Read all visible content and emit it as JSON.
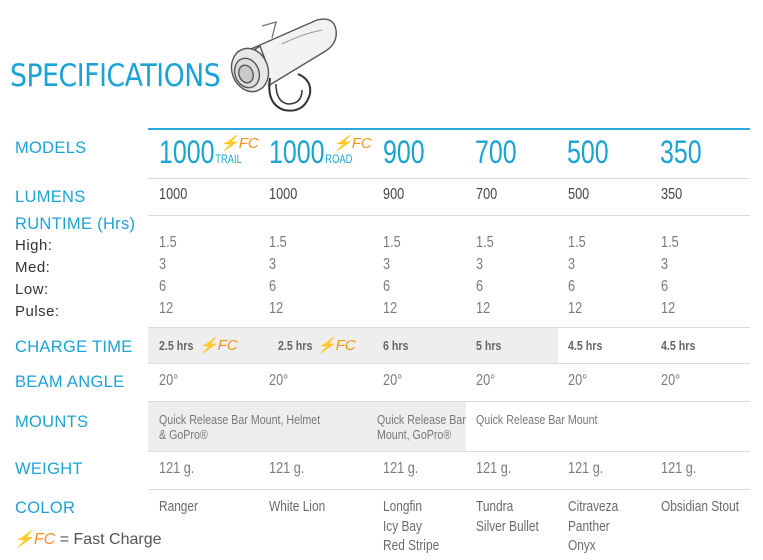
{
  "title": "SPECIFICATIONS",
  "labels": {
    "models": "MODELS",
    "lumens": "LUMENS",
    "runtime": "RUNTIME (Hrs)",
    "high": "High:",
    "med": "Med:",
    "low": "Low:",
    "pulse": "Pulse:",
    "charge_time": "CHARGE TIME",
    "beam_angle": "BEAM ANGLE",
    "mounts": "MOUNTS",
    "weight": "WEIGHT",
    "color": "COLOR"
  },
  "fc_mark": "FC",
  "legend": {
    "mark": "FC",
    "text": "= Fast Charge"
  },
  "models": [
    {
      "name": "1000",
      "sub": "TRAIL",
      "fc": true
    },
    {
      "name": "1000",
      "sub": "ROAD",
      "fc": true
    },
    {
      "name": "900",
      "sub": "",
      "fc": false
    },
    {
      "name": "700",
      "sub": "",
      "fc": false
    },
    {
      "name": "500",
      "sub": "",
      "fc": false
    },
    {
      "name": "350",
      "sub": "",
      "fc": false
    }
  ],
  "lumens": [
    "1000",
    "1000",
    "900",
    "700",
    "500",
    "350"
  ],
  "runtime": {
    "high": [
      "1.5",
      "1.5",
      "1.5",
      "1.5",
      "1.5",
      "1.5"
    ],
    "med": [
      "3",
      "3",
      "3",
      "3",
      "3",
      "3"
    ],
    "low": [
      "6",
      "6",
      "6",
      "6",
      "6",
      "6"
    ],
    "pulse": [
      "12",
      "12",
      "12",
      "12",
      "12",
      "12"
    ]
  },
  "charge_time": [
    "2.5 hrs",
    "2.5 hrs",
    "6 hrs",
    "5 hrs",
    "4.5 hrs",
    "4.5 hrs"
  ],
  "beam_angle": [
    "20°",
    "20°",
    "20°",
    "20°",
    "20°",
    "20°"
  ],
  "mounts": {
    "a": "Quick Release Bar Mount, Helmet",
    "a2": "& GoPro®",
    "b": "Quick Release Bar",
    "b2": "Mount, GoPro®",
    "c": "Quick Release Bar Mount"
  },
  "weight": [
    "121 g.",
    "121 g.",
    "121 g.",
    "121 g.",
    "121 g.",
    "121 g."
  ],
  "colors": {
    "c1": [
      "Ranger"
    ],
    "c2": [
      "White Lion"
    ],
    "c3": [
      "Longfin",
      "Icy Bay",
      "Red Stripe"
    ],
    "c4": [
      "Tundra",
      "Silver Bullet"
    ],
    "c5": [
      "Citraveza",
      "Panther",
      "Onyx"
    ],
    "c6": [
      "Obsidian Stout"
    ]
  }
}
